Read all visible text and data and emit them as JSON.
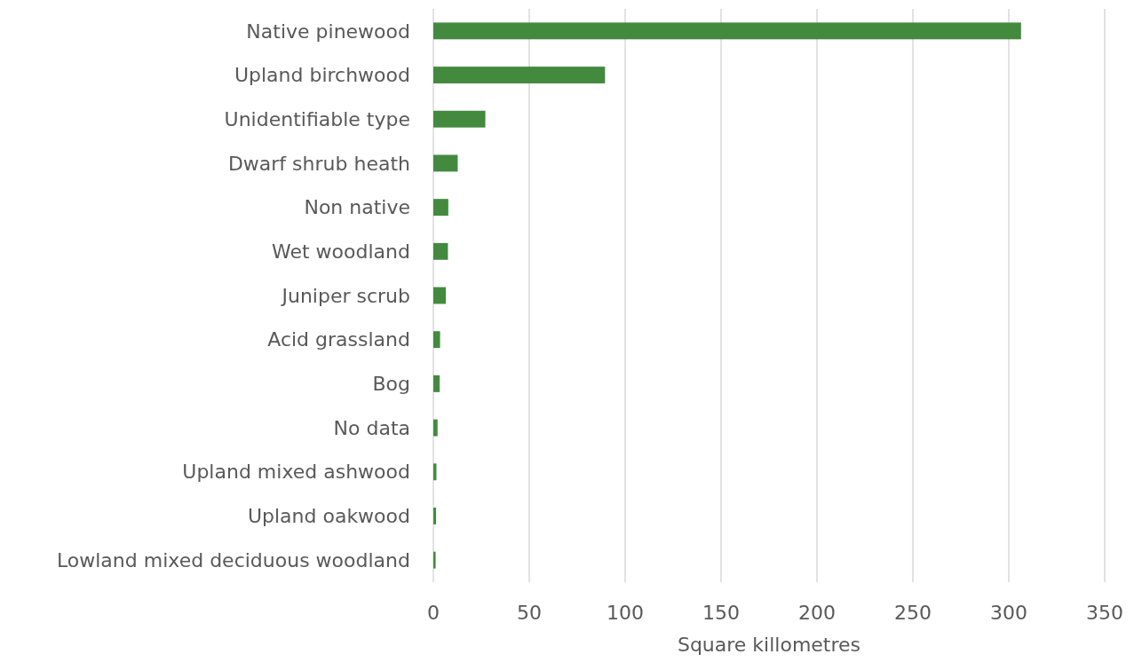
{
  "chart_data": {
    "type": "bar",
    "orientation": "horizontal",
    "xlabel": "Square killometres",
    "categories": [
      "Native pinewood",
      "Upland birchwood",
      "Unidentifiable type",
      "Dwarf shrub heath",
      "Non native",
      "Wet woodland",
      "Juniper scrub",
      "Acid grassland",
      "Bog",
      "No data",
      "Upland mixed ashwood",
      "Upland oakwood",
      "Lowland mixed deciduous woodland"
    ],
    "values": [
      306.4,
      89.5,
      27.1,
      12.7,
      7.8,
      7.6,
      6.5,
      3.5,
      3.3,
      2.2,
      1.6,
      1.4,
      1.2
    ],
    "color": "#438a3f",
    "xlim": [
      0,
      350
    ],
    "xticks": [
      0,
      50,
      100,
      150,
      200,
      250,
      300,
      350
    ],
    "grid": "x"
  }
}
